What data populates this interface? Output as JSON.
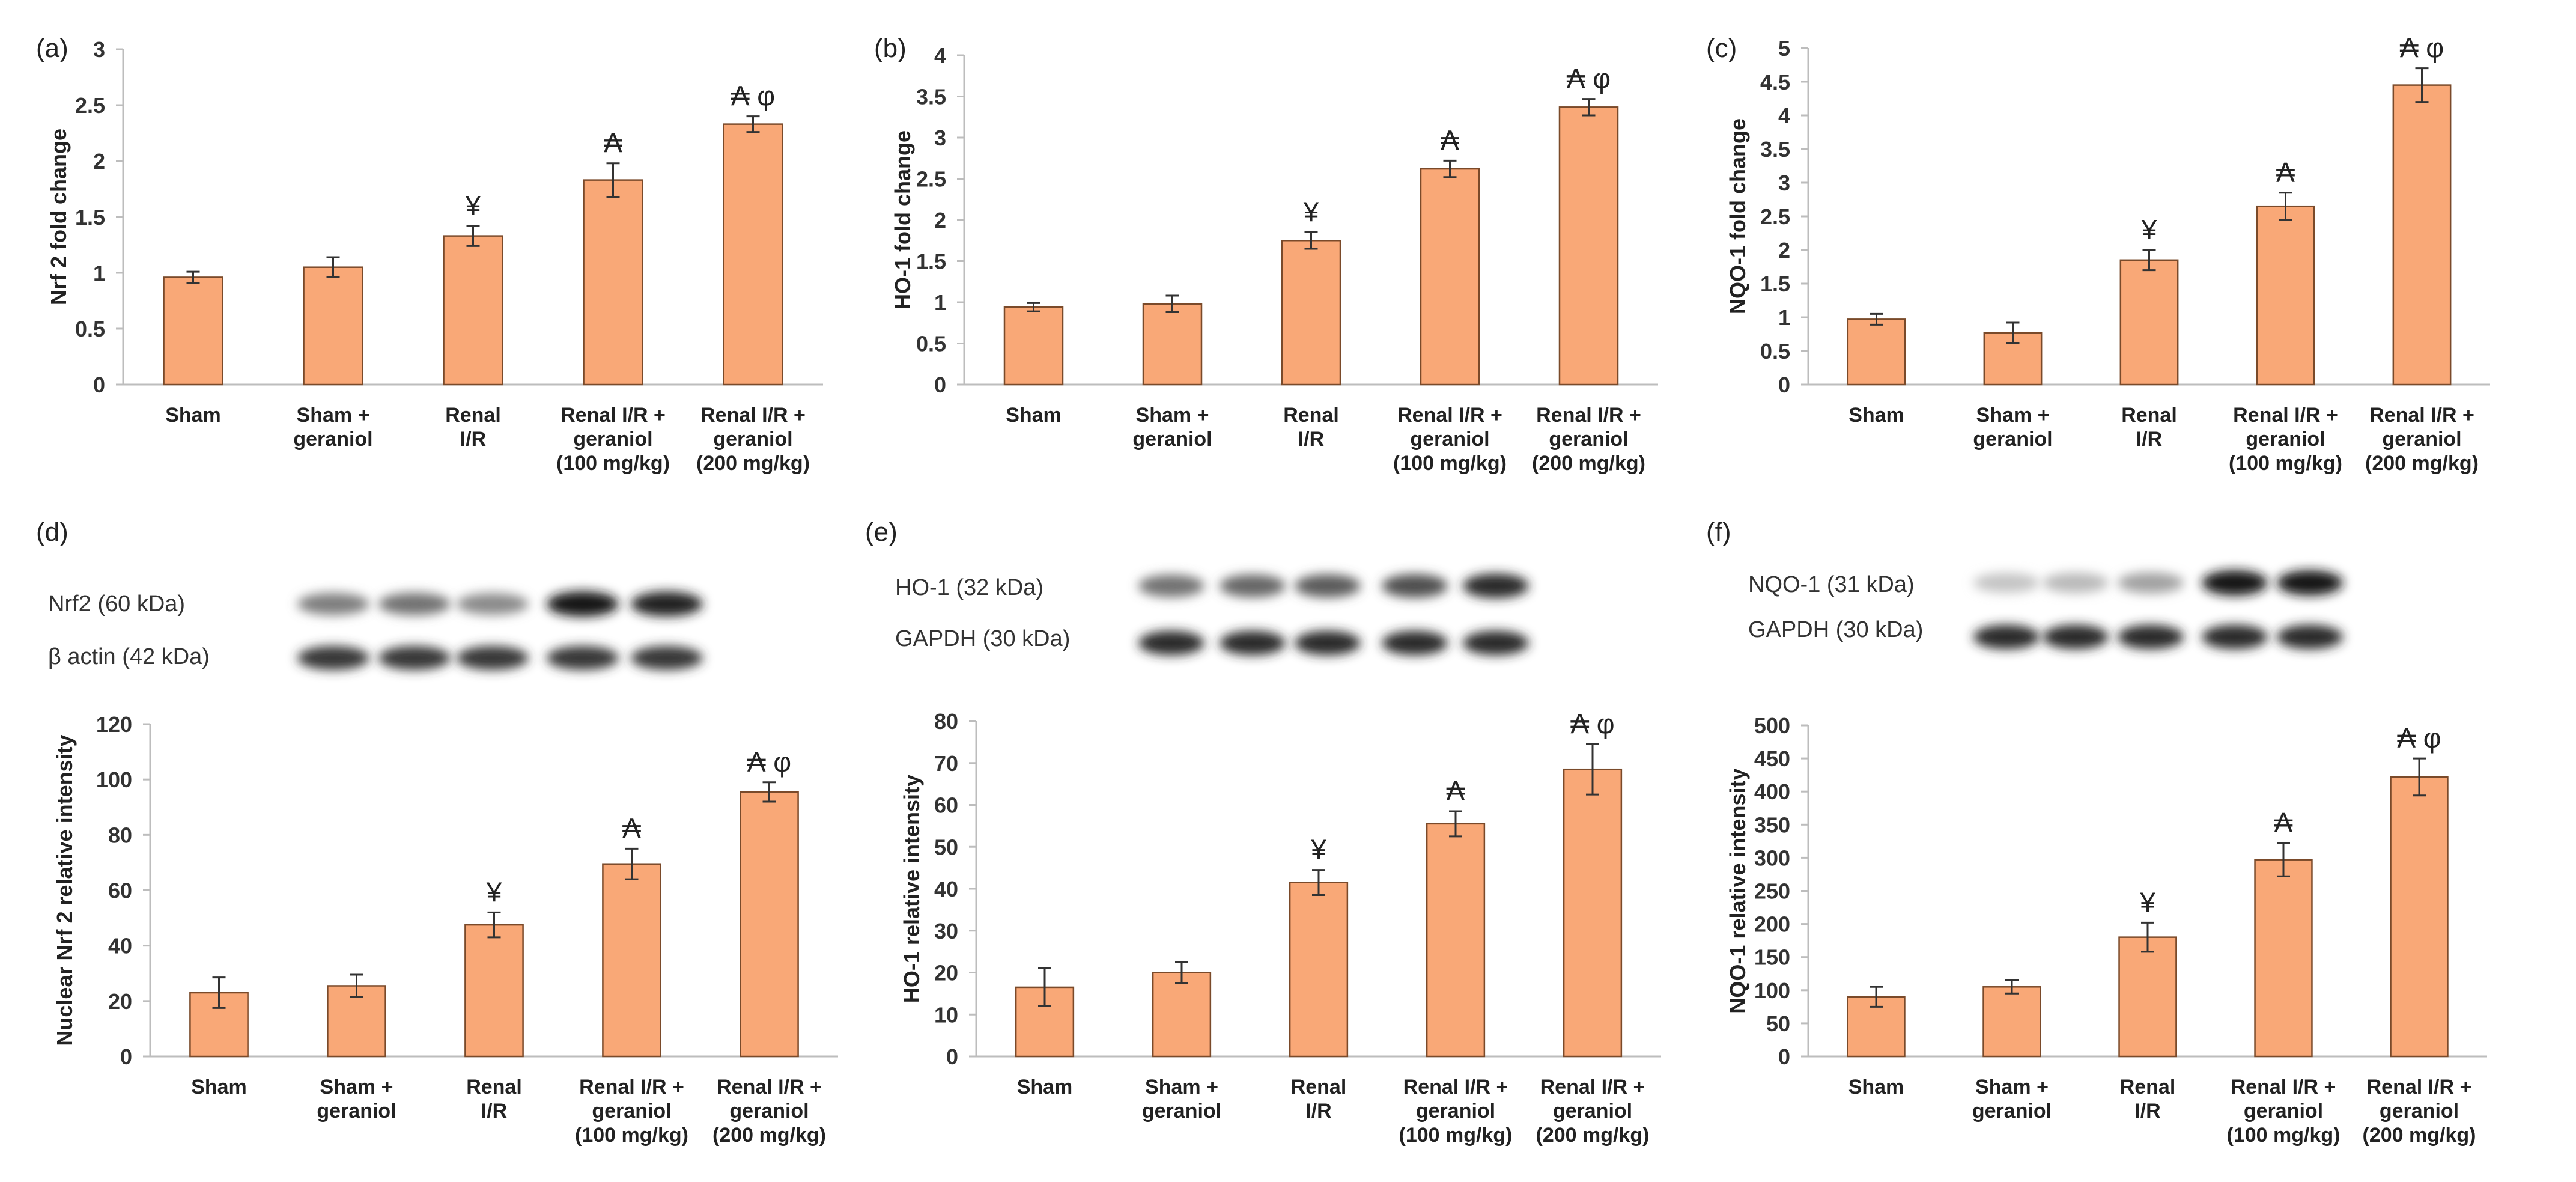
{
  "bar_color": "#f9a877",
  "bar_edge": "#7a4a2a",
  "categories": [
    [
      "Sham"
    ],
    [
      "Sham +",
      "geraniol"
    ],
    [
      "Renal",
      "I/R"
    ],
    [
      "Renal I/R +",
      "geraniol",
      "(100 mg/kg)"
    ],
    [
      "Renal I/R +",
      "geraniol",
      "(200 mg/kg)"
    ]
  ],
  "blots": [
    {
      "panel": "(d)",
      "rows": [
        {
          "label": "Nrf2 (60 kDa)",
          "intensity": [
            0.55,
            0.6,
            0.5,
            1.0,
            0.95
          ]
        },
        {
          "label": "β actin (42 kDa)",
          "intensity": [
            0.85,
            0.85,
            0.85,
            0.85,
            0.85
          ]
        }
      ]
    },
    {
      "panel": "(e)",
      "rows": [
        {
          "label": "HO-1 (32 kDa)",
          "intensity": [
            0.6,
            0.65,
            0.7,
            0.75,
            0.9
          ]
        },
        {
          "label": "GAPDH (30 kDa)",
          "intensity": [
            0.9,
            0.9,
            0.9,
            0.9,
            0.9
          ]
        }
      ]
    },
    {
      "panel": "(f)",
      "rows": [
        {
          "label": "NQO-1 (31 kDa)",
          "intensity": [
            0.25,
            0.3,
            0.4,
            1.0,
            0.98
          ]
        },
        {
          "label": "GAPDH (30 kDa)",
          "intensity": [
            0.9,
            0.9,
            0.9,
            0.9,
            0.9
          ]
        }
      ]
    }
  ],
  "chart_data": [
    {
      "panel": "(a)",
      "type": "bar",
      "ylabel": "Nrf 2 fold change",
      "ylim": [
        0,
        3
      ],
      "yticks": [
        0,
        0.5,
        1,
        1.5,
        2,
        2.5,
        3
      ],
      "values": [
        0.96,
        1.05,
        1.33,
        1.83,
        2.33
      ],
      "errors": [
        0.05,
        0.09,
        0.09,
        0.15,
        0.07
      ],
      "annotations": [
        "",
        "",
        "¥",
        "₳",
        "₳ φ"
      ]
    },
    {
      "panel": "(b)",
      "type": "bar",
      "ylabel": "HO-1 fold change",
      "ylim": [
        0,
        4
      ],
      "yticks": [
        0,
        0.5,
        1,
        1.5,
        2,
        2.5,
        3,
        3.5,
        4
      ],
      "values": [
        0.94,
        0.98,
        1.75,
        2.62,
        3.37
      ],
      "errors": [
        0.05,
        0.1,
        0.1,
        0.1,
        0.1
      ],
      "annotations": [
        "",
        "",
        "¥",
        "₳",
        "₳ φ"
      ]
    },
    {
      "panel": "(c)",
      "type": "bar",
      "ylabel": "NQO-1  fold change",
      "ylim": [
        0,
        5
      ],
      "yticks": [
        0,
        0.5,
        1,
        1.5,
        2,
        2.5,
        3,
        3.5,
        4,
        4.5,
        5
      ],
      "values": [
        0.97,
        0.77,
        1.85,
        2.65,
        4.45
      ],
      "errors": [
        0.08,
        0.15,
        0.15,
        0.2,
        0.25
      ],
      "annotations": [
        "",
        "",
        "¥",
        "₳",
        "₳ φ"
      ]
    },
    {
      "panel": "(d)",
      "type": "bar",
      "ylabel": "Nuclear Nrf 2 relative intensity",
      "ylim": [
        0,
        120
      ],
      "yticks": [
        0,
        20,
        40,
        60,
        80,
        100,
        120
      ],
      "values": [
        23,
        25.5,
        47.5,
        69.5,
        95.5
      ],
      "errors": [
        5.5,
        4,
        4.5,
        5.5,
        3.5
      ],
      "annotations": [
        "",
        "",
        "¥",
        "₳",
        "₳ φ"
      ]
    },
    {
      "panel": "(e)",
      "type": "bar",
      "ylabel": "HO-1 relative intensity",
      "ylim": [
        0,
        80
      ],
      "yticks": [
        0,
        10,
        20,
        30,
        40,
        50,
        60,
        70,
        80
      ],
      "values": [
        16.5,
        20,
        41.5,
        55.5,
        68.5
      ],
      "errors": [
        4.5,
        2.5,
        3,
        3,
        6
      ],
      "annotations": [
        "",
        "",
        "¥",
        "₳",
        "₳ φ"
      ]
    },
    {
      "panel": "(f)",
      "type": "bar",
      "ylabel": "NQO-1 relative intensity",
      "ylim": [
        0,
        500
      ],
      "yticks": [
        0,
        50,
        100,
        150,
        200,
        250,
        300,
        350,
        400,
        450,
        500
      ],
      "values": [
        90,
        105,
        180,
        297,
        422
      ],
      "errors": [
        15,
        10,
        22,
        25,
        28
      ],
      "annotations": [
        "",
        "",
        "¥",
        "₳",
        "₳ φ"
      ]
    }
  ]
}
